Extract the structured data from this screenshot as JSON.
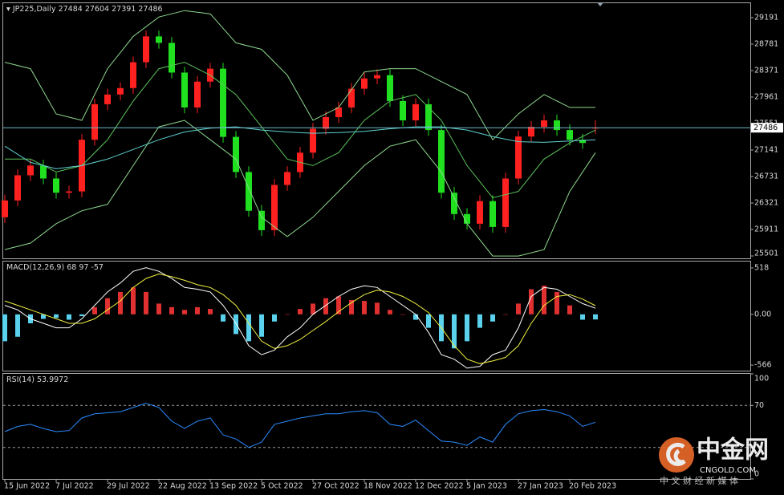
{
  "chart_data": [
    {
      "type": "candlestick",
      "title": "JP225,Daily",
      "up_color": "#ff2020",
      "down_color": "#20e020",
      "price_line_color": "#6fb8c8",
      "xlim": [
        0,
        185
      ],
      "ylim": [
        25464,
        29414
      ],
      "yticks": [
        29191,
        28781,
        28371,
        27961,
        27551,
        27141,
        26731,
        26321,
        25911,
        25501
      ],
      "x": [
        0,
        4,
        8,
        12,
        16,
        20,
        24,
        28,
        32,
        36,
        40,
        44,
        48,
        52,
        56,
        60,
        64,
        68,
        72,
        76,
        80,
        84,
        88,
        92,
        96,
        100,
        104,
        108,
        112,
        116,
        120,
        124,
        128,
        132,
        136,
        140,
        144,
        148,
        152,
        156,
        160,
        164,
        168,
        172,
        176,
        180,
        184
      ],
      "open": [
        26100,
        26360,
        26750,
        26900,
        26700,
        26480,
        26500,
        27300,
        27850,
        28000,
        28100,
        28500,
        28900,
        28800,
        28340,
        27800,
        28200,
        28400,
        27345,
        26800,
        26200,
        25900,
        26600,
        26800,
        27100,
        27470,
        27650,
        27800,
        28090,
        28250,
        28300,
        27900,
        27600,
        27850,
        27450,
        26480,
        26150,
        26000,
        26350,
        25950,
        26700,
        27350,
        27500,
        27600,
        27450,
        27300,
        27484
      ],
      "high": [
        26450,
        26840,
        26990,
        26990,
        26790,
        26590,
        27390,
        27940,
        28090,
        28190,
        28590,
        28990,
        28990,
        28890,
        28430,
        28290,
        28490,
        28490,
        27435,
        26890,
        26290,
        26690,
        26890,
        27190,
        27560,
        27740,
        27890,
        28180,
        28340,
        28390,
        28390,
        27990,
        27940,
        27940,
        27540,
        26570,
        26240,
        26440,
        26440,
        26790,
        27440,
        27590,
        27690,
        27690,
        27540,
        27390,
        27604
      ],
      "low": [
        26010,
        26270,
        26660,
        26610,
        26390,
        26390,
        26410,
        27210,
        27760,
        27910,
        28010,
        28410,
        28710,
        28250,
        27710,
        27710,
        28110,
        27255,
        26710,
        26110,
        25810,
        25810,
        26510,
        26710,
        27010,
        27380,
        27560,
        27710,
        28000,
        28160,
        27810,
        27510,
        27510,
        27360,
        26390,
        26060,
        25910,
        25910,
        25860,
        25860,
        26610,
        27260,
        27410,
        27360,
        27210,
        27160,
        27391
      ],
      "close": [
        26360,
        26750,
        26900,
        26700,
        26480,
        26500,
        27300,
        27850,
        28000,
        28100,
        28500,
        28900,
        28800,
        28340,
        27800,
        28200,
        28400,
        27345,
        26800,
        26200,
        25900,
        26600,
        26800,
        27100,
        27470,
        27650,
        27800,
        28090,
        28250,
        28300,
        27900,
        27600,
        27850,
        27450,
        26480,
        26150,
        26000,
        26350,
        25950,
        26700,
        27350,
        27500,
        27600,
        27450,
        27300,
        27250,
        27486
      ],
      "lines": [
        {
          "color": "#8fd88f",
          "x": [
            0,
            8,
            16,
            24,
            32,
            40,
            48,
            56,
            64,
            72,
            80,
            88,
            96,
            104,
            112,
            120,
            128,
            136,
            144,
            152,
            160,
            168,
            176,
            184
          ],
          "values": [
            28500,
            28400,
            27700,
            27600,
            28400,
            28900,
            29200,
            29300,
            29250,
            28800,
            28700,
            28300,
            27600,
            27800,
            28350,
            28400,
            28400,
            28200,
            28000,
            27300,
            27700,
            28000,
            27800,
            27800
          ]
        },
        {
          "color": "#8fd88f",
          "x": [
            0,
            8,
            16,
            24,
            32,
            40,
            48,
            56,
            64,
            72,
            80,
            88,
            96,
            104,
            112,
            120,
            128,
            136,
            144,
            152,
            160,
            168,
            176,
            184
          ],
          "values": [
            25600,
            25700,
            26000,
            26200,
            26300,
            26900,
            27500,
            27600,
            27300,
            27000,
            26100,
            25800,
            26100,
            26500,
            26900,
            27200,
            27300,
            26800,
            26000,
            25500,
            25500,
            25600,
            26500,
            27100
          ]
        },
        {
          "color": "#5cc45c",
          "x": [
            0,
            8,
            16,
            24,
            32,
            40,
            48,
            56,
            64,
            72,
            80,
            88,
            96,
            104,
            112,
            120,
            128,
            136,
            144,
            152,
            160,
            168,
            176,
            184
          ],
          "values": [
            27000,
            27000,
            26800,
            26900,
            27300,
            27900,
            28400,
            28500,
            28300,
            28000,
            27500,
            27000,
            26900,
            27100,
            27600,
            27900,
            28000,
            27600,
            26900,
            26400,
            26500,
            27000,
            27250,
            27450
          ]
        },
        {
          "color": "#5fd3d3",
          "x": [
            0,
            8,
            16,
            24,
            32,
            40,
            48,
            56,
            64,
            72,
            80,
            88,
            96,
            104,
            112,
            120,
            128,
            136,
            144,
            152,
            160,
            168,
            176,
            184
          ],
          "values": [
            27200,
            26950,
            26850,
            26900,
            27000,
            27150,
            27300,
            27420,
            27480,
            27500,
            27450,
            27420,
            27400,
            27410,
            27430,
            27470,
            27500,
            27500,
            27450,
            27350,
            27270,
            27260,
            27280,
            27300
          ]
        }
      ]
    },
    {
      "type": "bar",
      "title": "MACD(12,26,9)",
      "pos_color": "#e03030",
      "neg_color": "#5ad2ee",
      "xlim": [
        0,
        185
      ],
      "ylim": [
        -628,
        589
      ],
      "yticks": [
        518,
        {
          "value": 0,
          "label": "0.00"
        },
        -566
      ],
      "x": [
        0,
        4,
        8,
        12,
        16,
        20,
        24,
        28,
        32,
        36,
        40,
        44,
        48,
        52,
        56,
        60,
        64,
        68,
        72,
        76,
        80,
        84,
        88,
        92,
        96,
        100,
        104,
        108,
        112,
        116,
        120,
        124,
        128,
        132,
        136,
        140,
        144,
        148,
        152,
        156,
        160,
        164,
        168,
        172,
        176,
        180,
        184
      ],
      "values": [
        -300,
        -250,
        -100,
        -50,
        -40,
        -60,
        -20,
        80,
        180,
        250,
        300,
        250,
        120,
        80,
        50,
        80,
        60,
        -80,
        -220,
        -300,
        -250,
        -80,
        0,
        60,
        120,
        180,
        200,
        160,
        150,
        130,
        50,
        0,
        -60,
        -150,
        -300,
        -380,
        -300,
        -150,
        -80,
        0,
        120,
        280,
        320,
        250,
        100,
        -60,
        -57
      ],
      "lines": [
        {
          "color": "#ffffff",
          "values": [
            100,
            50,
            -50,
            -100,
            -150,
            -150,
            -50,
            100,
            250,
            350,
            480,
            520,
            480,
            400,
            300,
            280,
            250,
            100,
            -100,
            -350,
            -450,
            -400,
            -250,
            -150,
            0,
            100,
            200,
            280,
            320,
            300,
            200,
            100,
            0,
            -200,
            -450,
            -500,
            -600,
            -580,
            -450,
            -400,
            -150,
            200,
            300,
            280,
            200,
            120,
            68
          ]
        },
        {
          "color": "#f0f040",
          "values": [
            150,
            100,
            50,
            0,
            -50,
            -100,
            -100,
            -50,
            50,
            150,
            300,
            400,
            450,
            420,
            380,
            330,
            300,
            220,
            100,
            -100,
            -300,
            -380,
            -350,
            -280,
            -180,
            -80,
            30,
            130,
            220,
            270,
            250,
            200,
            120,
            20,
            -150,
            -350,
            -500,
            -550,
            -520,
            -480,
            -350,
            -100,
            100,
            200,
            220,
            170,
            97
          ]
        }
      ]
    },
    {
      "type": "line",
      "title": "RSI(14)",
      "color": "#2a8cff",
      "level_color": "#9a9a9a",
      "xlim": [
        0,
        185
      ],
      "ylim": [
        0,
        100
      ],
      "yticks": [
        100,
        70,
        0
      ],
      "levels": [
        70,
        30
      ],
      "x": [
        0,
        4,
        8,
        12,
        16,
        20,
        24,
        28,
        32,
        36,
        40,
        44,
        48,
        52,
        56,
        60,
        64,
        68,
        72,
        76,
        80,
        84,
        88,
        92,
        96,
        100,
        104,
        108,
        112,
        116,
        120,
        124,
        128,
        132,
        136,
        140,
        144,
        148,
        152,
        156,
        160,
        164,
        168,
        172,
        176,
        180,
        184
      ],
      "values": [
        45,
        50,
        52,
        48,
        45,
        46,
        58,
        62,
        63,
        64,
        68,
        72,
        68,
        55,
        48,
        55,
        58,
        42,
        38,
        30,
        35,
        52,
        55,
        58,
        60,
        62,
        62,
        64,
        65,
        63,
        52,
        50,
        56,
        46,
        36,
        35,
        32,
        40,
        35,
        52,
        62,
        65,
        66,
        64,
        60,
        50,
        53.9972
      ],
      "xticks": [
        {
          "value": 0,
          "label": "15 Jun 2022"
        },
        {
          "value": 16,
          "label": "7 Jul 2022"
        },
        {
          "value": 32,
          "label": "29 Jul 2022"
        },
        {
          "value": 48,
          "label": "22 Aug 2022"
        },
        {
          "value": 64,
          "label": "13 Sep 2022"
        },
        {
          "value": 80,
          "label": "5 Oct 2022"
        },
        {
          "value": 96,
          "label": "27 Oct 2022"
        },
        {
          "value": 112,
          "label": "18 Nov 2022"
        },
        {
          "value": 128,
          "label": "12 Dec 2022"
        },
        {
          "value": 144,
          "label": "5 Jan 2023"
        },
        {
          "value": 160,
          "label": "27 Jan 2023"
        },
        {
          "value": 176,
          "label": "20 Feb 2023"
        }
      ]
    }
  ],
  "watermark": {
    "name": "中金网",
    "domain": "CNGOLD.COM",
    "slogan": "中 文 财 经 新 媒 体"
  }
}
